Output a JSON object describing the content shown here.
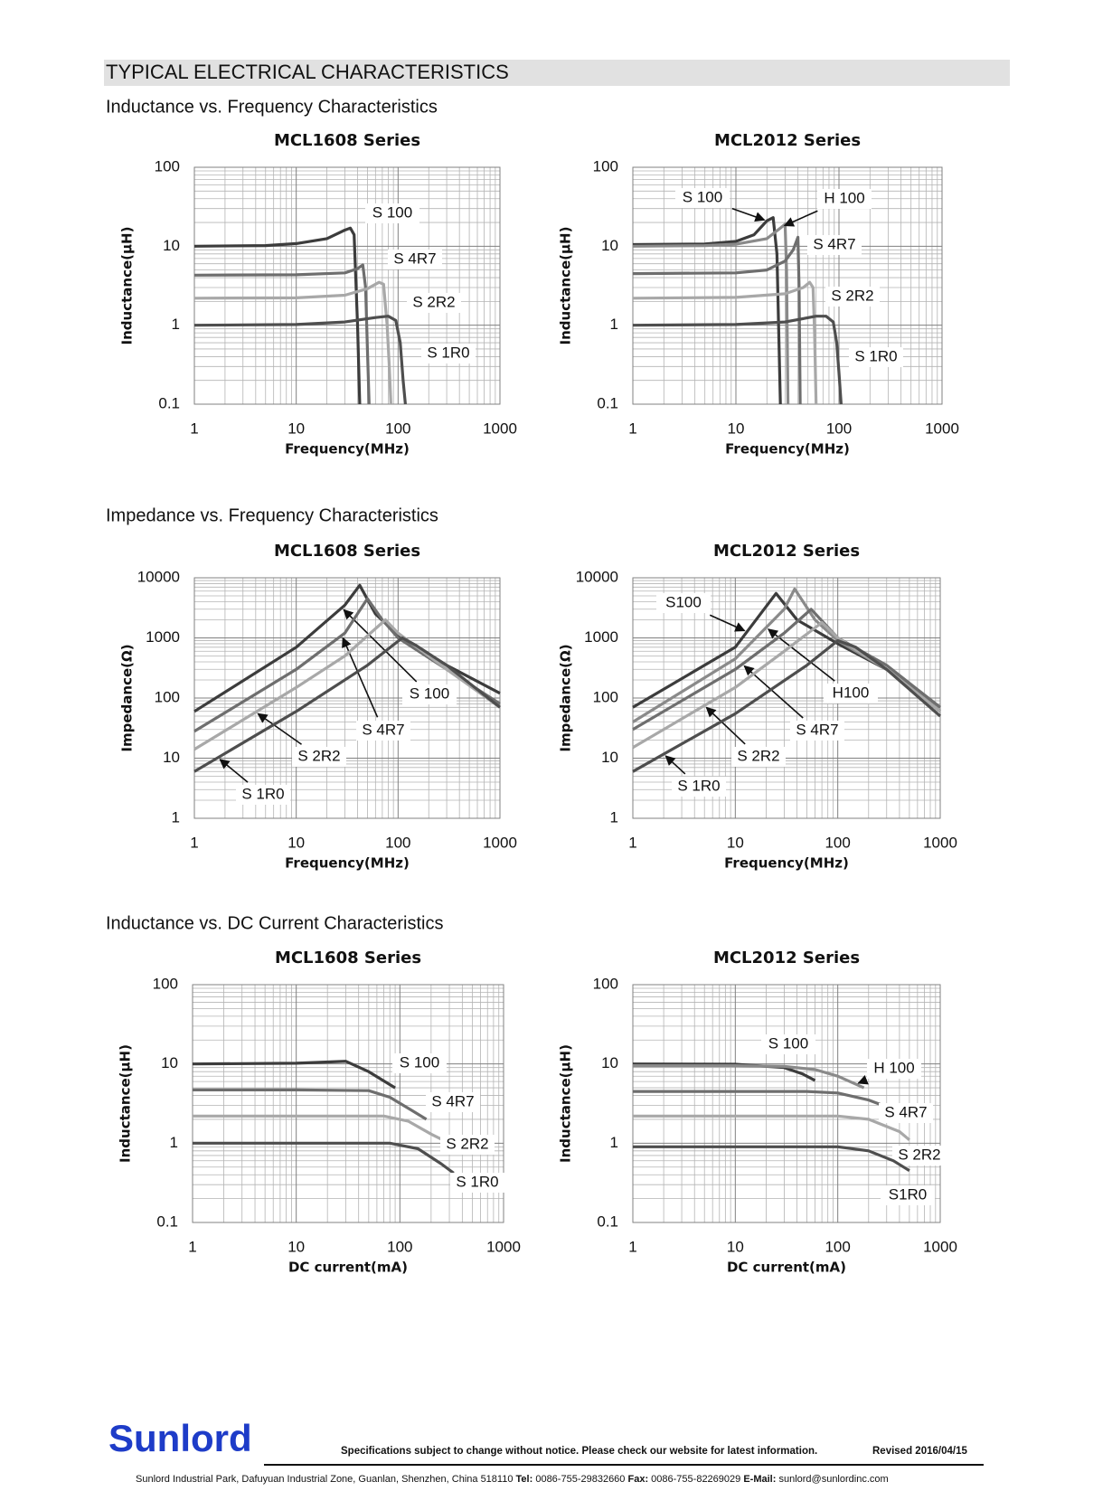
{
  "header": {
    "title": "TYPICAL ELECTRICAL CHARACTERISTICS"
  },
  "sections": [
    "Inductance vs. Frequency Characteristics",
    "Impedance vs. Frequency Characteristics",
    "Inductance vs. DC Current Characteristics"
  ],
  "footer": {
    "brand": "Sunlord",
    "notice": "Specifications subject to change without notice. Please check our website for latest information.",
    "revised": "Revised 2016/04/15",
    "address": "Sunlord Industrial Park, Dafuyuan Industrial Zone, Guanlan, Shenzhen, China 518110",
    "tel_label": "Tel:",
    "tel": "0086-755-29832660",
    "fax_label": "Fax:",
    "fax": "0086-755-82269029",
    "email_label": "E-Mail:",
    "email": "sunlord@sunlordinc.com"
  },
  "chart_data": [
    {
      "type": "line",
      "title": "MCL1608 Series",
      "x_label": "Frequency(MHz)",
      "y_label": "Inductance(μH)",
      "xlog": true,
      "ylog": true,
      "grid": true,
      "xlim": [
        1,
        1000
      ],
      "xticks": [
        1,
        10,
        100,
        1000
      ],
      "ylim": [
        0.1,
        100
      ],
      "yticks": [
        0.1,
        1,
        10,
        100
      ],
      "series": [
        {
          "name": "S 100",
          "color": "#3c3c3c",
          "x": [
            1,
            5,
            10,
            20,
            30,
            34,
            37,
            40,
            42
          ],
          "values": [
            10,
            10.2,
            10.8,
            12.5,
            16,
            17,
            14,
            1,
            0.1
          ]
        },
        {
          "name": "S 4R7",
          "color": "#6e6e6e",
          "x": [
            1,
            10,
            30,
            40,
            45,
            48,
            50,
            52
          ],
          "values": [
            4.3,
            4.35,
            4.6,
            5.2,
            5.8,
            3,
            0.5,
            0.1
          ]
        },
        {
          "name": "S 2R2",
          "color": "#a8a8a8",
          "x": [
            1,
            10,
            30,
            50,
            65,
            72,
            78,
            82,
            85
          ],
          "values": [
            2.2,
            2.22,
            2.4,
            2.9,
            3.5,
            3.3,
            1,
            0.3,
            0.1
          ]
        },
        {
          "name": "S 1R0",
          "color": "#4e4e4e",
          "x": [
            1,
            10,
            30,
            60,
            80,
            95,
            105,
            112,
            118
          ],
          "values": [
            1,
            1.02,
            1.1,
            1.25,
            1.3,
            1.15,
            0.6,
            0.2,
            0.1
          ]
        }
      ]
    },
    {
      "type": "line",
      "title": "MCL2012 Series",
      "x_label": "Frequency(MHz)",
      "y_label": "Inductance(μH)",
      "xlog": true,
      "ylog": true,
      "grid": true,
      "xlim": [
        1,
        1000
      ],
      "xticks": [
        1,
        10,
        100,
        1000
      ],
      "ylim": [
        0.1,
        100
      ],
      "yticks": [
        0.1,
        1,
        10,
        100
      ],
      "series": [
        {
          "name": "S 100",
          "color": "#3c3c3c",
          "x": [
            1,
            5,
            10,
            15,
            20,
            23,
            25,
            27
          ],
          "values": [
            10.5,
            10.7,
            11.5,
            14,
            21,
            23,
            8,
            0.1
          ]
        },
        {
          "name": "H 100",
          "color": "#8a8a8a",
          "x": [
            1,
            5,
            10,
            20,
            27,
            30,
            31,
            32
          ],
          "values": [
            10,
            10.2,
            10.6,
            12.5,
            17,
            19,
            5,
            0.1
          ]
        },
        {
          "name": "S 4R7",
          "color": "#6e6e6e",
          "x": [
            1,
            10,
            20,
            30,
            36,
            40,
            41,
            42
          ],
          "values": [
            4.5,
            4.6,
            5,
            6.5,
            9,
            13,
            3,
            0.1
          ]
        },
        {
          "name": "S 2R2",
          "color": "#a8a8a8",
          "x": [
            1,
            10,
            30,
            45,
            52,
            56,
            58,
            60
          ],
          "values": [
            2.2,
            2.25,
            2.5,
            3,
            3.5,
            3,
            0.8,
            0.1
          ]
        },
        {
          "name": "S 1R0",
          "color": "#4e4e4e",
          "x": [
            1,
            10,
            30,
            60,
            75,
            88,
            95,
            100,
            105
          ],
          "values": [
            1,
            1.02,
            1.1,
            1.3,
            1.3,
            1.1,
            0.6,
            0.25,
            0.1
          ]
        }
      ]
    },
    {
      "type": "line",
      "title": "MCL1608 Series",
      "x_label": "Frequency(MHz)",
      "y_label": "Impedance(Ω)",
      "xlog": true,
      "ylog": true,
      "grid": true,
      "xlim": [
        1,
        1000
      ],
      "xticks": [
        1,
        10,
        100,
        1000
      ],
      "ylim": [
        1,
        10000
      ],
      "yticks": [
        1,
        10,
        100,
        1000,
        10000
      ],
      "series": [
        {
          "name": "S 100",
          "color": "#3c3c3c",
          "x": [
            1,
            10,
            30,
            42,
            60,
            100,
            300,
            1000
          ],
          "values": [
            60,
            700,
            3500,
            7500,
            2500,
            1100,
            350,
            120
          ]
        },
        {
          "name": "S 4R7",
          "color": "#6e6e6e",
          "x": [
            1,
            10,
            30,
            50,
            70,
            100,
            300,
            1000
          ],
          "values": [
            28,
            300,
            1200,
            4500,
            2000,
            1000,
            300,
            80
          ]
        },
        {
          "name": "S 2R2",
          "color": "#a8a8a8",
          "x": [
            1,
            10,
            30,
            75,
            100,
            300,
            1000
          ],
          "values": [
            14,
            150,
            500,
            2000,
            1200,
            300,
            70
          ]
        },
        {
          "name": "S 1R0",
          "color": "#4e4e4e",
          "x": [
            1,
            10,
            50,
            110,
            150,
            300,
            1000
          ],
          "values": [
            6,
            60,
            350,
            1000,
            750,
            350,
            70
          ]
        }
      ]
    },
    {
      "type": "line",
      "title": "MCL2012 Series",
      "x_label": "Frequency(MHz)",
      "y_label": "Impedance(Ω)",
      "xlog": true,
      "ylog": true,
      "grid": true,
      "xlim": [
        1,
        1000
      ],
      "xticks": [
        1,
        10,
        100,
        1000
      ],
      "ylim": [
        1,
        10000
      ],
      "yticks": [
        1,
        10,
        100,
        1000,
        10000
      ],
      "series": [
        {
          "name": "S100",
          "color": "#3c3c3c",
          "x": [
            1,
            10,
            25,
            40,
            100,
            300,
            1000
          ],
          "values": [
            70,
            700,
            5500,
            2000,
            800,
            300,
            60
          ]
        },
        {
          "name": "H100",
          "color": "#8a8a8a",
          "x": [
            1,
            10,
            30,
            38,
            60,
            100,
            300,
            1000
          ],
          "values": [
            40,
            450,
            3000,
            6500,
            2000,
            900,
            300,
            70
          ]
        },
        {
          "name": "S 4R7",
          "color": "#6e6e6e",
          "x": [
            1,
            10,
            30,
            55,
            100,
            300,
            1000
          ],
          "values": [
            30,
            300,
            1200,
            3000,
            1000,
            350,
            70
          ]
        },
        {
          "name": "S 2R2",
          "color": "#a8a8a8",
          "x": [
            1,
            10,
            30,
            70,
            100,
            300,
            1000
          ],
          "values": [
            15,
            150,
            600,
            1800,
            1000,
            300,
            60
          ]
        },
        {
          "name": "S 1R0",
          "color": "#4e4e4e",
          "x": [
            1,
            10,
            50,
            100,
            150,
            300,
            1000
          ],
          "values": [
            6,
            55,
            350,
            900,
            700,
            300,
            50
          ]
        }
      ]
    },
    {
      "type": "line",
      "title": "MCL1608 Series",
      "x_label": "DC current(mA)",
      "y_label": "Inductance(μH)",
      "xlog": true,
      "ylog": true,
      "grid": true,
      "xlim": [
        1,
        1000
      ],
      "xticks": [
        1,
        10,
        100,
        1000
      ],
      "ylim": [
        0.1,
        100
      ],
      "yticks": [
        0.1,
        1,
        10,
        100
      ],
      "series": [
        {
          "name": "S 100",
          "color": "#3c3c3c",
          "x": [
            1,
            10,
            30,
            50,
            90
          ],
          "values": [
            10,
            10.2,
            10.8,
            8,
            5
          ]
        },
        {
          "name": "S 4R7",
          "color": "#6e6e6e",
          "x": [
            1,
            10,
            50,
            80,
            130,
            180
          ],
          "values": [
            4.7,
            4.7,
            4.6,
            3.8,
            2.6,
            2
          ]
        },
        {
          "name": "S 2R2",
          "color": "#a8a8a8",
          "x": [
            1,
            10,
            70,
            120,
            200,
            300
          ],
          "values": [
            2.2,
            2.2,
            2.2,
            1.9,
            1.3,
            1
          ]
        },
        {
          "name": "S 1R0",
          "color": "#4e4e4e",
          "x": [
            1,
            10,
            80,
            150,
            250,
            330
          ],
          "values": [
            1,
            1,
            1,
            0.85,
            0.55,
            0.42
          ]
        }
      ]
    },
    {
      "type": "line",
      "title": "MCL2012 Series",
      "x_label": "DC current(mA)",
      "y_label": "Inductance(μH)",
      "xlog": true,
      "ylog": true,
      "grid": true,
      "xlim": [
        1,
        1000
      ],
      "xticks": [
        1,
        10,
        100,
        1000
      ],
      "ylim": [
        0.1,
        100
      ],
      "yticks": [
        0.1,
        1,
        10,
        100
      ],
      "series": [
        {
          "name": "S 100",
          "color": "#3c3c3c",
          "x": [
            1,
            10,
            30,
            45,
            60
          ],
          "values": [
            10,
            9.9,
            9,
            7.5,
            6.2
          ]
        },
        {
          "name": "H 100",
          "color": "#8a8a8a",
          "x": [
            1,
            10,
            30,
            60,
            100,
            180
          ],
          "values": [
            9.5,
            9.5,
            9.3,
            8.5,
            7,
            5
          ]
        },
        {
          "name": "S 4R7",
          "color": "#6e6e6e",
          "x": [
            1,
            10,
            50,
            100,
            200,
            400
          ],
          "values": [
            4.5,
            4.5,
            4.5,
            4.3,
            3.5,
            2.5
          ]
        },
        {
          "name": "S 2R2",
          "color": "#a8a8a8",
          "x": [
            1,
            10,
            100,
            200,
            400,
            500
          ],
          "values": [
            2.2,
            2.2,
            2.2,
            2,
            1.4,
            1.1
          ]
        },
        {
          "name": "S1R0",
          "color": "#4e4e4e",
          "x": [
            1,
            10,
            100,
            200,
            350,
            500
          ],
          "values": [
            0.9,
            0.9,
            0.9,
            0.8,
            0.6,
            0.45
          ]
        }
      ]
    }
  ]
}
